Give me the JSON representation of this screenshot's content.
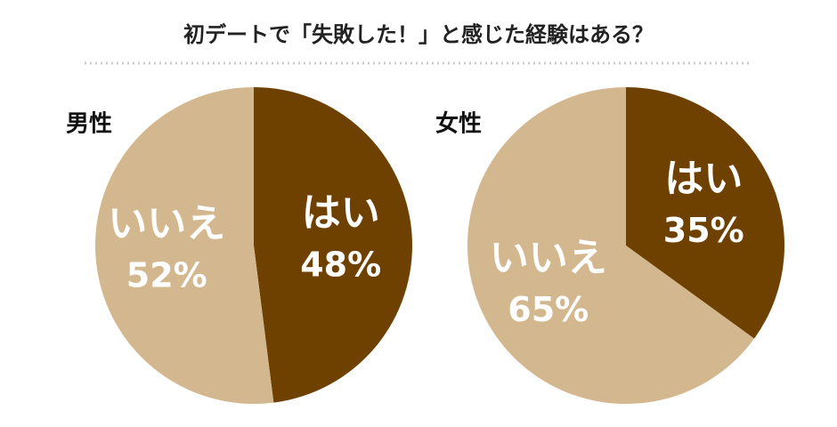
{
  "title": "初デートで「失敗した！」と感じた経験はある？",
  "chart_data": [
    {
      "type": "pie",
      "title": "男性",
      "categories": [
        "はい",
        "いいえ"
      ],
      "values": [
        48,
        52
      ],
      "value_labels": [
        "48%",
        "52%"
      ],
      "colors": [
        "#6f4100",
        "#d3b78f"
      ]
    },
    {
      "type": "pie",
      "title": "女性",
      "categories": [
        "はい",
        "いいえ"
      ],
      "values": [
        35,
        65
      ],
      "value_labels": [
        "35%",
        "65%"
      ],
      "colors": [
        "#6f4100",
        "#d3b78f"
      ]
    }
  ]
}
